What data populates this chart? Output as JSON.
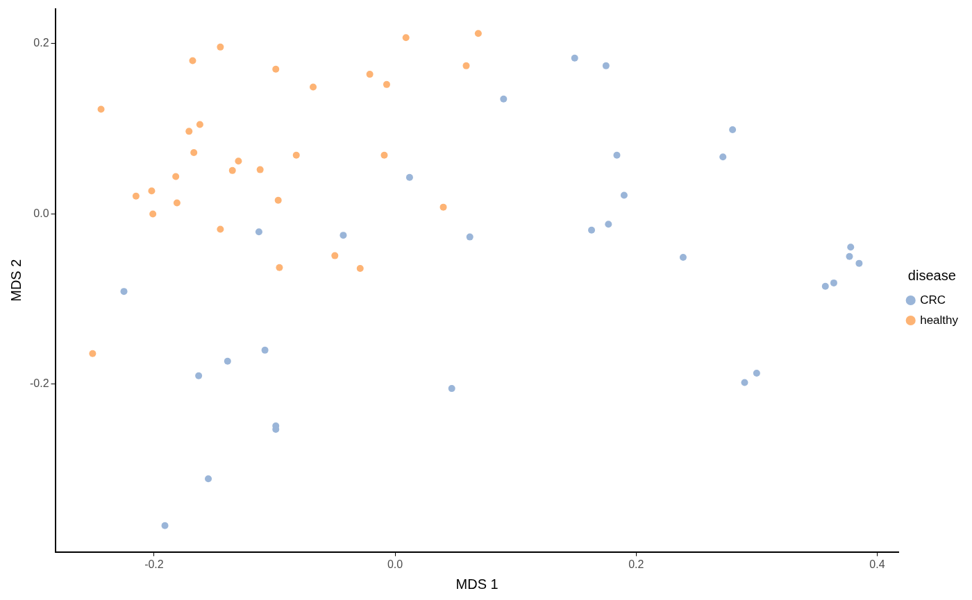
{
  "chart_data": {
    "type": "scatter",
    "xlabel": "MDS 1",
    "ylabel": "MDS 2",
    "legend_title": "disease",
    "legend": "right",
    "grid": false,
    "marker": "circle",
    "xlim": [
      -0.282,
      0.418
    ],
    "xticks": [
      {
        "value": -0.2,
        "label": "-0.2"
      },
      {
        "value": 0,
        "label": "0.0"
      },
      {
        "value": 0.2,
        "label": "0.2"
      },
      {
        "value": 0.4,
        "label": "0.4"
      }
    ],
    "ylim": [
      -0.397,
      0.241
    ],
    "yticks": [
      {
        "value": -0.2,
        "label": "-0.2"
      },
      {
        "value": 0,
        "label": "0.0"
      },
      {
        "value": 0.2,
        "label": "0.2"
      }
    ],
    "series": [
      {
        "name": "CRC",
        "color": "#9ab5d8",
        "x": [
          0.149,
          0.175,
          0.09,
          0.28,
          0.184,
          0.272,
          0.012,
          0.19,
          -0.113,
          -0.043,
          0.062,
          0.163,
          0.177,
          0.239,
          0.378,
          0.377,
          0.385,
          0.357,
          0.364,
          -0.225,
          -0.108,
          -0.139,
          -0.163,
          0.047,
          0.29,
          0.3,
          -0.099,
          -0.099,
          -0.155,
          -0.191
        ],
        "values": [
          0.183,
          0.174,
          0.135,
          0.099,
          0.069,
          0.067,
          0.043,
          0.022,
          -0.021,
          -0.025,
          -0.027,
          -0.019,
          -0.012,
          -0.051,
          -0.039,
          -0.05,
          -0.058,
          -0.085,
          -0.081,
          -0.091,
          -0.16,
          -0.173,
          -0.19,
          -0.205,
          -0.198,
          -0.187,
          -0.249,
          -0.253,
          -0.311,
          -0.366
        ]
      },
      {
        "name": "healthy",
        "color": "#fdb374",
        "x": [
          -0.244,
          -0.145,
          -0.168,
          -0.099,
          -0.068,
          -0.021,
          -0.007,
          0.009,
          0.069,
          0.059,
          -0.171,
          -0.162,
          -0.167,
          -0.182,
          -0.215,
          -0.202,
          -0.181,
          -0.201,
          -0.13,
          -0.135,
          -0.112,
          -0.082,
          -0.009,
          -0.097,
          -0.145,
          -0.096,
          -0.05,
          -0.029,
          0.04,
          -0.251
        ],
        "values": [
          0.123,
          0.196,
          0.18,
          0.17,
          0.149,
          0.164,
          0.152,
          0.207,
          0.212,
          0.174,
          0.097,
          0.105,
          0.072,
          0.044,
          0.021,
          0.027,
          0.013,
          0.0,
          0.062,
          0.051,
          0.052,
          0.069,
          0.069,
          0.016,
          -0.018,
          -0.063,
          -0.049,
          -0.064,
          0.008,
          -0.164
        ]
      }
    ]
  }
}
